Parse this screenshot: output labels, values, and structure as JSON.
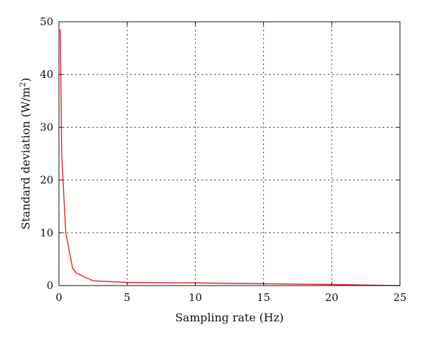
{
  "chart_data": {
    "type": "line",
    "xlabel": "Sampling rate (Hz)",
    "ylabel": "Standard deviation (W/m",
    "ylabel_superscript": "2",
    "ylabel_suffix": ")",
    "xlim": [
      0,
      25
    ],
    "ylim": [
      0,
      50
    ],
    "xticks": [
      0,
      5,
      10,
      15,
      20,
      25
    ],
    "yticks": [
      0,
      10,
      20,
      30,
      40,
      50
    ],
    "grid": true,
    "series": [
      {
        "color": "#e0202a",
        "points": [
          [
            0.1,
            48.6
          ],
          [
            0.2,
            25.0
          ],
          [
            0.5,
            10.0
          ],
          [
            1.0,
            3.3
          ],
          [
            1.25,
            2.4
          ],
          [
            2.5,
            0.9
          ],
          [
            5.0,
            0.6
          ],
          [
            10.0,
            0.5
          ],
          [
            15.0,
            0.35
          ],
          [
            20.0,
            0.2
          ],
          [
            25.0,
            0.0
          ]
        ]
      }
    ]
  }
}
